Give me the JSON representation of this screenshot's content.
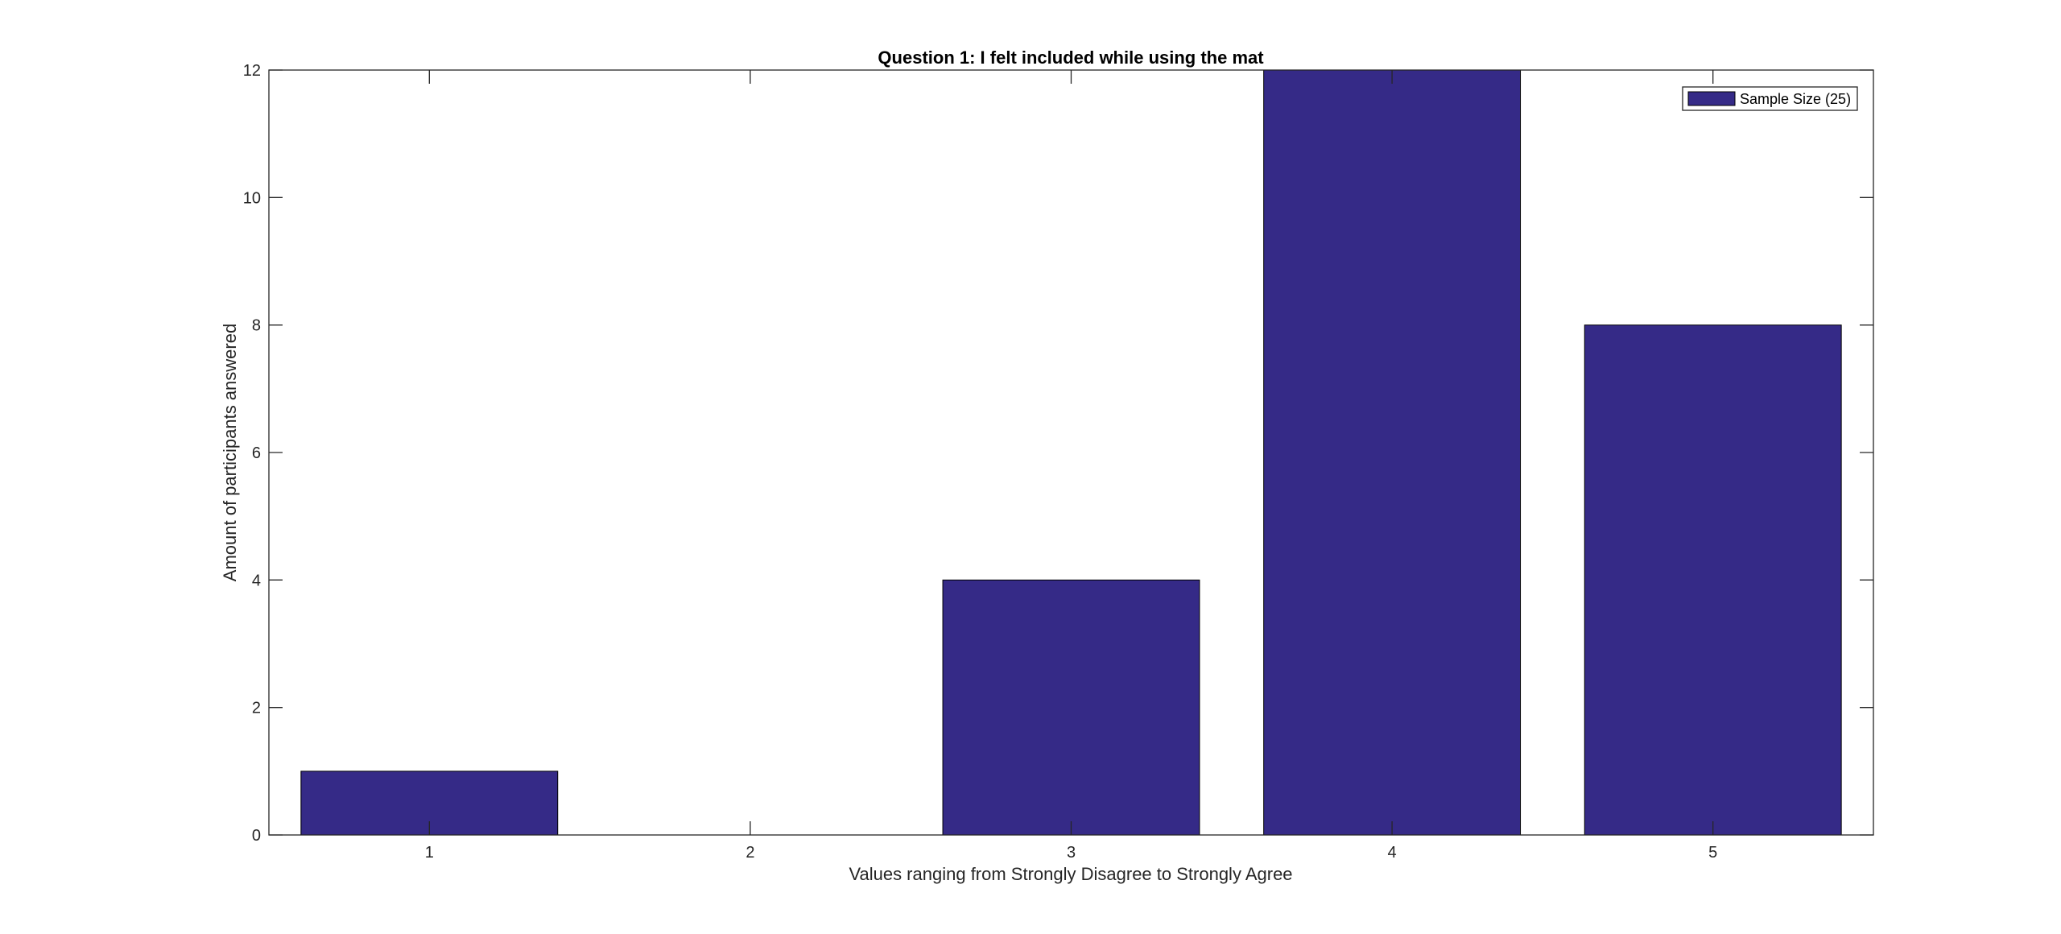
{
  "chart_data": {
    "type": "bar",
    "title": "Question 1: I felt included while using the mat",
    "xlabel": "Values ranging from Strongly Disagree to Strongly Agree",
    "ylabel": "Amount of participants answered",
    "categories": [
      "1",
      "2",
      "3",
      "4",
      "5"
    ],
    "series": [
      {
        "name": "Sample Size (25)",
        "values": [
          1,
          0,
          4,
          12,
          8
        ],
        "color": "#352a87"
      }
    ],
    "ylim": [
      0,
      12
    ],
    "yticks": [
      "0",
      "2",
      "4",
      "6",
      "8",
      "10",
      "12"
    ],
    "grid": false,
    "legend_position": "top-right"
  }
}
